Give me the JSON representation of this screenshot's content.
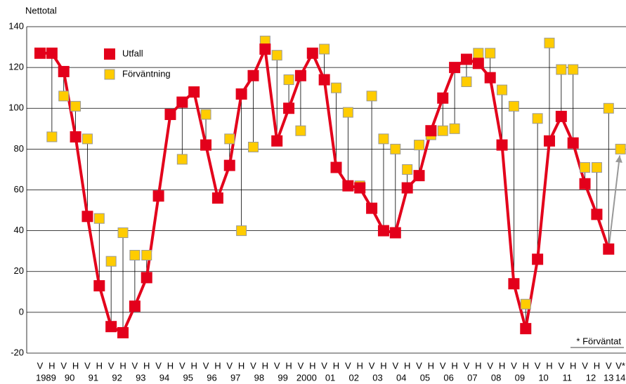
{
  "chart_data": {
    "type": "line",
    "y_label": "Nettotal",
    "footnote": "* Förväntat",
    "categories": [
      "V",
      "H",
      "V",
      "H",
      "V",
      "H",
      "V",
      "H",
      "V",
      "H",
      "V",
      "H",
      "V",
      "H",
      "V",
      "H",
      "V",
      "H",
      "V",
      "H",
      "V",
      "H",
      "V",
      "H",
      "V",
      "H",
      "V",
      "H",
      "V",
      "H",
      "V",
      "H",
      "V",
      "H",
      "V",
      "H",
      "V",
      "H",
      "V",
      "H",
      "V",
      "H",
      "V",
      "H",
      "V",
      "H",
      "V",
      "H",
      "V",
      "V*"
    ],
    "years": [
      "1989",
      "90",
      "91",
      "92",
      "93",
      "94",
      "95",
      "96",
      "97",
      "98",
      "99",
      "2000",
      "01",
      "02",
      "03",
      "04",
      "05",
      "06",
      "07",
      "08",
      "09",
      "10",
      "11",
      "12",
      "13",
      "14"
    ],
    "series": [
      {
        "name": "Utfall",
        "color": "#e3001b",
        "values": [
          127,
          127,
          118,
          86,
          47,
          13,
          -7,
          -10,
          3,
          17,
          57,
          97,
          103,
          108,
          82,
          56,
          72,
          107,
          116,
          129,
          84,
          100,
          116,
          127,
          114,
          71,
          62,
          61,
          51,
          40,
          39,
          61,
          67,
          89,
          105,
          120,
          124,
          122,
          115,
          82,
          14,
          -8,
          26,
          84,
          96,
          83,
          63,
          48,
          31,
          null
        ]
      },
      {
        "name": "Förväntning",
        "color": "#ffcc00",
        "values": [
          null,
          86,
          106,
          101,
          85,
          46,
          25,
          39,
          28,
          28,
          null,
          null,
          75,
          null,
          97,
          null,
          85,
          40,
          81,
          133,
          126,
          114,
          89,
          null,
          129,
          110,
          98,
          62,
          106,
          85,
          80,
          70,
          82,
          87,
          89,
          90,
          113,
          127,
          127,
          109,
          101,
          4,
          95,
          132,
          119,
          119,
          71,
          71,
          100,
          80
        ]
      }
    ],
    "ylim": [
      -20,
      140
    ],
    "yticks": [
      -20,
      0,
      20,
      40,
      60,
      80,
      100,
      120,
      140
    ],
    "grid": true,
    "legend": "top-left"
  }
}
